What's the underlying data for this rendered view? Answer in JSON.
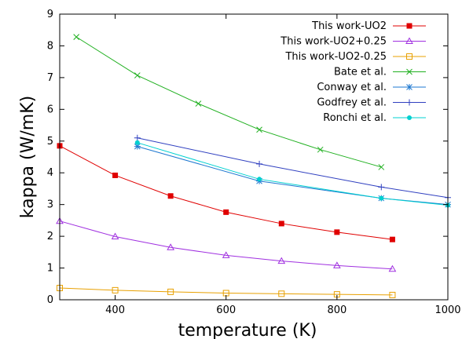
{
  "chart_data": {
    "type": "line",
    "xlabel": "temperature (K)",
    "ylabel": "kappa (W/mK)",
    "xlim": [
      300,
      1000
    ],
    "ylim": [
      0,
      9
    ],
    "xticks": [
      "400",
      "600",
      "800",
      "1000"
    ],
    "yticks": [
      "0",
      "1",
      "2",
      "3",
      "4",
      "5",
      "6",
      "7",
      "8",
      "9"
    ],
    "grid": false,
    "legend_position": "top-right",
    "series": [
      {
        "name": "This work-UO2",
        "color": "#e00000",
        "marker": "filled-square",
        "x": [
          300,
          400,
          500,
          600,
          700,
          800,
          900
        ],
        "y": [
          4.85,
          3.92,
          3.27,
          2.76,
          2.4,
          2.13,
          1.9
        ]
      },
      {
        "name": "This work-UO2+0.25",
        "color": "#a030e0",
        "marker": "open-triangle",
        "x": [
          300,
          400,
          500,
          600,
          700,
          800,
          900
        ],
        "y": [
          2.48,
          1.99,
          1.65,
          1.4,
          1.22,
          1.08,
          0.97
        ]
      },
      {
        "name": "This work-UO2-0.25",
        "color": "#e8a000",
        "marker": "open-square",
        "x": [
          300,
          400,
          500,
          600,
          700,
          800,
          900
        ],
        "y": [
          0.37,
          0.3,
          0.25,
          0.21,
          0.19,
          0.17,
          0.15
        ]
      },
      {
        "name": "Bate et al.",
        "color": "#20b020",
        "marker": "x",
        "x": [
          330,
          440,
          550,
          660,
          770,
          880
        ],
        "y": [
          8.28,
          7.07,
          6.18,
          5.36,
          4.73,
          4.18
        ]
      },
      {
        "name": "Conway et al.",
        "color": "#1e78d0",
        "marker": "asterisk",
        "x": [
          440,
          660,
          880,
          1000
        ],
        "y": [
          4.83,
          3.74,
          3.2,
          3.0
        ]
      },
      {
        "name": "Godfrey et al.",
        "color": "#3040c0",
        "marker": "plus",
        "x": [
          440,
          660,
          880,
          1000
        ],
        "y": [
          5.1,
          4.28,
          3.55,
          3.22
        ]
      },
      {
        "name": "Ronchi et al.",
        "color": "#00d0d0",
        "marker": "filled-circle",
        "x": [
          440,
          660,
          880,
          1000
        ],
        "y": [
          4.95,
          3.8,
          3.2,
          2.98
        ]
      }
    ]
  }
}
